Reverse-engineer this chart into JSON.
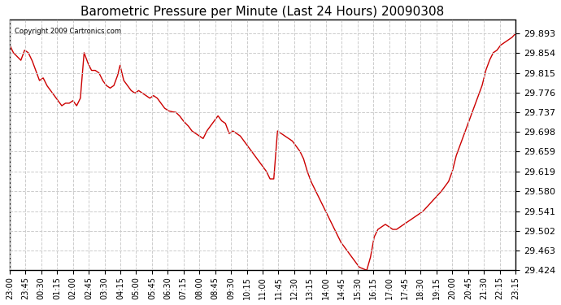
{
  "title": "Barometric Pressure per Minute (Last 24 Hours) 20090308",
  "copyright_text": "Copyright 2009 Cartronics.com",
  "line_color": "#cc0000",
  "background_color": "#ffffff",
  "grid_color": "#cccccc",
  "yticks": [
    29.424,
    29.463,
    29.502,
    29.541,
    29.58,
    29.619,
    29.659,
    29.698,
    29.737,
    29.776,
    29.815,
    29.854,
    29.893
  ],
  "ylim": [
    29.424,
    29.92
  ],
  "xtick_labels": [
    "23:00",
    "23:45",
    "00:30",
    "01:15",
    "02:00",
    "02:45",
    "03:30",
    "04:15",
    "05:00",
    "05:45",
    "06:30",
    "07:15",
    "08:00",
    "08:45",
    "09:30",
    "10:15",
    "11:00",
    "11:45",
    "12:30",
    "13:15",
    "14:00",
    "14:45",
    "15:30",
    "16:15",
    "17:00",
    "17:45",
    "18:30",
    "19:15",
    "20:00",
    "20:45",
    "21:30",
    "22:15",
    "23:15"
  ],
  "key_points": [
    [
      0,
      29.87
    ],
    [
      15,
      29.855
    ],
    [
      45,
      29.84
    ],
    [
      60,
      29.86
    ],
    [
      75,
      29.855
    ],
    [
      90,
      29.84
    ],
    [
      105,
      29.82
    ],
    [
      120,
      29.8
    ],
    [
      135,
      29.805
    ],
    [
      150,
      29.79
    ],
    [
      165,
      29.78
    ],
    [
      180,
      29.77
    ],
    [
      195,
      29.76
    ],
    [
      210,
      29.75
    ],
    [
      225,
      29.755
    ],
    [
      240,
      29.755
    ],
    [
      255,
      29.76
    ],
    [
      270,
      29.75
    ],
    [
      285,
      29.765
    ],
    [
      300,
      29.855
    ],
    [
      315,
      29.835
    ],
    [
      330,
      29.82
    ],
    [
      345,
      29.82
    ],
    [
      360,
      29.815
    ],
    [
      375,
      29.8
    ],
    [
      390,
      29.79
    ],
    [
      405,
      29.785
    ],
    [
      420,
      29.79
    ],
    [
      435,
      29.81
    ],
    [
      445,
      29.83
    ],
    [
      460,
      29.8
    ],
    [
      475,
      29.79
    ],
    [
      490,
      29.78
    ],
    [
      505,
      29.775
    ],
    [
      520,
      29.78
    ],
    [
      535,
      29.775
    ],
    [
      550,
      29.77
    ],
    [
      565,
      29.765
    ],
    [
      580,
      29.77
    ],
    [
      595,
      29.765
    ],
    [
      610,
      29.755
    ],
    [
      625,
      29.745
    ],
    [
      640,
      29.74
    ],
    [
      655,
      29.738
    ],
    [
      670,
      29.737
    ],
    [
      685,
      29.73
    ],
    [
      700,
      29.72
    ],
    [
      720,
      29.71
    ],
    [
      735,
      29.7
    ],
    [
      750,
      29.695
    ],
    [
      765,
      29.69
    ],
    [
      780,
      29.685
    ],
    [
      795,
      29.7
    ],
    [
      810,
      29.71
    ],
    [
      825,
      29.72
    ],
    [
      840,
      29.73
    ],
    [
      855,
      29.72
    ],
    [
      870,
      29.715
    ],
    [
      885,
      29.695
    ],
    [
      900,
      29.7
    ],
    [
      915,
      29.695
    ],
    [
      930,
      29.69
    ],
    [
      945,
      29.68
    ],
    [
      960,
      29.67
    ],
    [
      975,
      29.66
    ],
    [
      990,
      29.65
    ],
    [
      1005,
      29.64
    ],
    [
      1020,
      29.63
    ],
    [
      1035,
      29.62
    ],
    [
      1050,
      29.605
    ],
    [
      1065,
      29.605
    ],
    [
      1080,
      29.7
    ],
    [
      1095,
      29.695
    ],
    [
      1110,
      29.69
    ],
    [
      1125,
      29.685
    ],
    [
      1140,
      29.68
    ],
    [
      1155,
      29.67
    ],
    [
      1170,
      29.66
    ],
    [
      1185,
      29.645
    ],
    [
      1200,
      29.62
    ],
    [
      1215,
      29.6
    ],
    [
      1230,
      29.585
    ],
    [
      1245,
      29.57
    ],
    [
      1260,
      29.555
    ],
    [
      1275,
      29.54
    ],
    [
      1290,
      29.525
    ],
    [
      1305,
      29.51
    ],
    [
      1320,
      29.495
    ],
    [
      1335,
      29.48
    ],
    [
      1350,
      29.47
    ],
    [
      1365,
      29.46
    ],
    [
      1380,
      29.45
    ],
    [
      1395,
      29.44
    ],
    [
      1410,
      29.43
    ],
    [
      1425,
      29.427
    ],
    [
      1440,
      29.424
    ],
    [
      1455,
      29.45
    ],
    [
      1470,
      29.49
    ],
    [
      1485,
      29.505
    ],
    [
      1500,
      29.51
    ],
    [
      1515,
      29.515
    ],
    [
      1530,
      29.51
    ],
    [
      1545,
      29.505
    ],
    [
      1560,
      29.505
    ],
    [
      1575,
      29.51
    ],
    [
      1590,
      29.515
    ],
    [
      1605,
      29.52
    ],
    [
      1620,
      29.525
    ],
    [
      1635,
      29.53
    ],
    [
      1650,
      29.535
    ],
    [
      1665,
      29.54
    ],
    [
      1680,
      29.548
    ],
    [
      1695,
      29.556
    ],
    [
      1710,
      29.564
    ],
    [
      1725,
      29.572
    ],
    [
      1740,
      29.58
    ],
    [
      1755,
      29.59
    ],
    [
      1770,
      29.6
    ],
    [
      1785,
      29.62
    ],
    [
      1800,
      29.65
    ],
    [
      1815,
      29.67
    ],
    [
      1830,
      29.69
    ],
    [
      1845,
      29.71
    ],
    [
      1860,
      29.73
    ],
    [
      1875,
      29.75
    ],
    [
      1890,
      29.77
    ],
    [
      1905,
      29.79
    ],
    [
      1920,
      29.82
    ],
    [
      1935,
      29.84
    ],
    [
      1950,
      29.855
    ],
    [
      1965,
      29.86
    ],
    [
      1980,
      29.87
    ],
    [
      1995,
      29.875
    ],
    [
      2010,
      29.88
    ],
    [
      2025,
      29.885
    ],
    [
      2040,
      29.893
    ]
  ]
}
